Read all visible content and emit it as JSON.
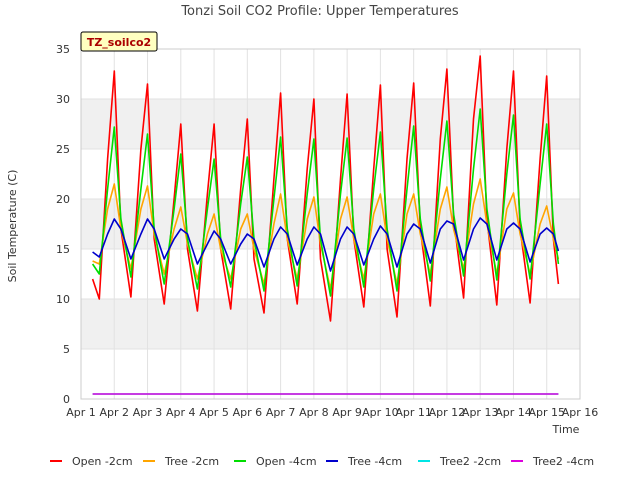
{
  "chart_data": {
    "type": "line",
    "title": "Tonzi Soil CO2 Profile: Upper Temperatures",
    "xlabel": "Time",
    "ylabel": "Soil Temperature (C)",
    "badge": "TZ_soilco2",
    "xlim": [
      1,
      16
    ],
    "ylim": [
      0,
      35
    ],
    "x_ticks": [
      {
        "v": 1,
        "label": "Apr 1"
      },
      {
        "v": 2,
        "label": "Apr 2"
      },
      {
        "v": 3,
        "label": "Apr 3"
      },
      {
        "v": 4,
        "label": "Apr 4"
      },
      {
        "v": 5,
        "label": "Apr 5"
      },
      {
        "v": 6,
        "label": "Apr 6"
      },
      {
        "v": 7,
        "label": "Apr 7"
      },
      {
        "v": 8,
        "label": "Apr 8"
      },
      {
        "v": 9,
        "label": "Apr 9"
      },
      {
        "v": 10,
        "label": "Apr 10"
      },
      {
        "v": 11,
        "label": "Apr 11"
      },
      {
        "v": 12,
        "label": "Apr 12"
      },
      {
        "v": 13,
        "label": "Apr 13"
      },
      {
        "v": 14,
        "label": "Apr 14"
      },
      {
        "v": 15,
        "label": "Apr 15"
      },
      {
        "v": 16,
        "label": "Apr 16"
      }
    ],
    "y_ticks": [
      0,
      5,
      10,
      15,
      20,
      25,
      30,
      35
    ],
    "grid": true,
    "legend_position": "bottom",
    "series": [
      {
        "name": "Open -2cm",
        "color": "#ff0000",
        "x": [
          1.35,
          1.55,
          1.8,
          2.0,
          2.2,
          2.5,
          2.8,
          3.0,
          3.2,
          3.5,
          3.8,
          4.0,
          4.2,
          4.5,
          4.8,
          5.0,
          5.2,
          5.5,
          5.8,
          6.0,
          6.2,
          6.5,
          6.8,
          7.0,
          7.2,
          7.5,
          7.8,
          8.0,
          8.2,
          8.5,
          8.8,
          9.0,
          9.2,
          9.5,
          9.8,
          10.0,
          10.2,
          10.5,
          10.8,
          11.0,
          11.2,
          11.5,
          11.8,
          12.0,
          12.2,
          12.5,
          12.8,
          13.0,
          13.2,
          13.5,
          13.8,
          14.0,
          14.2,
          14.5,
          14.8,
          15.0,
          15.2,
          15.35
        ],
        "y": [
          12.0,
          10.0,
          24.0,
          32.8,
          17.0,
          10.2,
          25.0,
          31.5,
          16.0,
          9.5,
          20.0,
          27.5,
          15.0,
          8.8,
          20.5,
          27.5,
          15.0,
          9.0,
          21.0,
          28.0,
          14.0,
          8.6,
          22.0,
          30.6,
          16.0,
          9.5,
          23.0,
          30.0,
          14.0,
          7.8,
          22.0,
          30.5,
          16.0,
          9.2,
          23.0,
          31.4,
          15.0,
          8.2,
          24.0,
          31.6,
          17.0,
          9.3,
          26.0,
          33.0,
          18.0,
          10.1,
          28.0,
          34.3,
          18.0,
          9.4,
          25.0,
          32.8,
          17.0,
          9.6,
          24.0,
          32.3,
          16.0,
          11.5
        ]
      },
      {
        "name": "Tree -2cm",
        "color": "#ffa500",
        "x": [
          1.35,
          1.55,
          1.8,
          2.0,
          2.2,
          2.5,
          2.8,
          3.0,
          3.2,
          3.5,
          3.8,
          4.0,
          4.2,
          4.5,
          4.8,
          5.0,
          5.2,
          5.5,
          5.8,
          6.0,
          6.2,
          6.5,
          6.8,
          7.0,
          7.2,
          7.5,
          7.8,
          8.0,
          8.2,
          8.5,
          8.8,
          9.0,
          9.2,
          9.5,
          9.8,
          10.0,
          10.2,
          10.5,
          10.8,
          11.0,
          11.2,
          11.5,
          11.8,
          12.0,
          12.2,
          12.5,
          12.8,
          13.0,
          13.2,
          13.5,
          13.8,
          14.0,
          14.2,
          14.5,
          14.8,
          15.0,
          15.2,
          15.35
        ],
        "y": [
          13.8,
          13.5,
          19.0,
          21.5,
          17.0,
          13.0,
          19.0,
          21.3,
          16.5,
          12.5,
          17.0,
          19.2,
          15.5,
          12.0,
          16.5,
          18.5,
          15.0,
          12.0,
          17.0,
          18.5,
          15.0,
          11.5,
          17.5,
          20.5,
          16.0,
          12.0,
          18.0,
          20.2,
          15.5,
          11.0,
          18.0,
          20.2,
          16.0,
          12.0,
          18.5,
          20.5,
          16.0,
          11.5,
          18.5,
          20.5,
          16.5,
          12.5,
          19.0,
          21.2,
          17.0,
          13.0,
          19.5,
          22.0,
          17.5,
          12.5,
          19.0,
          20.6,
          16.5,
          12.5,
          17.5,
          19.3,
          16.0,
          14.0
        ]
      },
      {
        "name": "Open -4cm",
        "color": "#00dd00",
        "x": [
          1.35,
          1.55,
          1.8,
          2.0,
          2.2,
          2.5,
          2.8,
          3.0,
          3.2,
          3.5,
          3.8,
          4.0,
          4.2,
          4.5,
          4.8,
          5.0,
          5.2,
          5.5,
          5.8,
          6.0,
          6.2,
          6.5,
          6.8,
          7.0,
          7.2,
          7.5,
          7.8,
          8.0,
          8.2,
          8.5,
          8.8,
          9.0,
          9.2,
          9.5,
          9.8,
          10.0,
          10.2,
          10.5,
          10.8,
          11.0,
          11.2,
          11.5,
          11.8,
          12.0,
          12.2,
          12.5,
          12.8,
          13.0,
          13.2,
          13.5,
          13.8,
          14.0,
          14.2,
          14.5,
          14.8,
          15.0,
          15.2,
          15.35
        ],
        "y": [
          13.5,
          12.5,
          21.0,
          27.2,
          18.0,
          12.2,
          21.0,
          26.5,
          17.0,
          11.5,
          19.0,
          24.5,
          16.0,
          11.0,
          19.0,
          24.0,
          16.0,
          11.2,
          19.5,
          24.2,
          16.0,
          10.8,
          20.0,
          26.2,
          17.0,
          11.3,
          20.5,
          26.0,
          16.0,
          10.3,
          20.5,
          26.1,
          17.0,
          11.2,
          21.0,
          26.7,
          17.0,
          10.8,
          21.0,
          27.3,
          18.0,
          11.8,
          22.0,
          27.8,
          18.5,
          12.3,
          23.0,
          29.0,
          19.0,
          11.9,
          22.5,
          28.4,
          18.0,
          12.0,
          21.5,
          27.5,
          17.5,
          13.5
        ]
      },
      {
        "name": "Tree -4cm",
        "color": "#0000cc",
        "x": [
          1.35,
          1.55,
          1.8,
          2.0,
          2.2,
          2.5,
          2.8,
          3.0,
          3.2,
          3.5,
          3.8,
          4.0,
          4.2,
          4.5,
          4.8,
          5.0,
          5.2,
          5.5,
          5.8,
          6.0,
          6.2,
          6.5,
          6.8,
          7.0,
          7.2,
          7.5,
          7.8,
          8.0,
          8.2,
          8.5,
          8.8,
          9.0,
          9.2,
          9.5,
          9.8,
          10.0,
          10.2,
          10.5,
          10.8,
          11.0,
          11.2,
          11.5,
          11.8,
          12.0,
          12.2,
          12.5,
          12.8,
          13.0,
          13.2,
          13.5,
          13.8,
          14.0,
          14.2,
          14.5,
          14.8,
          15.0,
          15.2,
          15.35
        ],
        "y": [
          14.7,
          14.2,
          16.5,
          18.0,
          17.0,
          14.0,
          16.5,
          18.0,
          17.0,
          14.0,
          16.0,
          17.0,
          16.5,
          13.5,
          15.5,
          16.8,
          16.0,
          13.5,
          15.5,
          16.5,
          16.0,
          13.2,
          16.0,
          17.2,
          16.5,
          13.4,
          16.0,
          17.2,
          16.5,
          12.8,
          16.0,
          17.2,
          16.5,
          13.4,
          16.0,
          17.3,
          16.5,
          13.2,
          16.5,
          17.5,
          17.0,
          13.6,
          17.0,
          17.8,
          17.5,
          13.9,
          17.0,
          18.1,
          17.5,
          13.9,
          17.0,
          17.6,
          17.0,
          13.7,
          16.5,
          17.1,
          16.5,
          14.8
        ]
      },
      {
        "name": "Tree2 -2cm",
        "color": "#00e5e5",
        "x": [
          1.35,
          15.35
        ],
        "y": [
          0.5,
          0.5
        ]
      },
      {
        "name": "Tree2 -4cm",
        "color": "#dd00dd",
        "x": [
          1.35,
          15.35
        ],
        "y": [
          0.5,
          0.5
        ]
      }
    ]
  }
}
